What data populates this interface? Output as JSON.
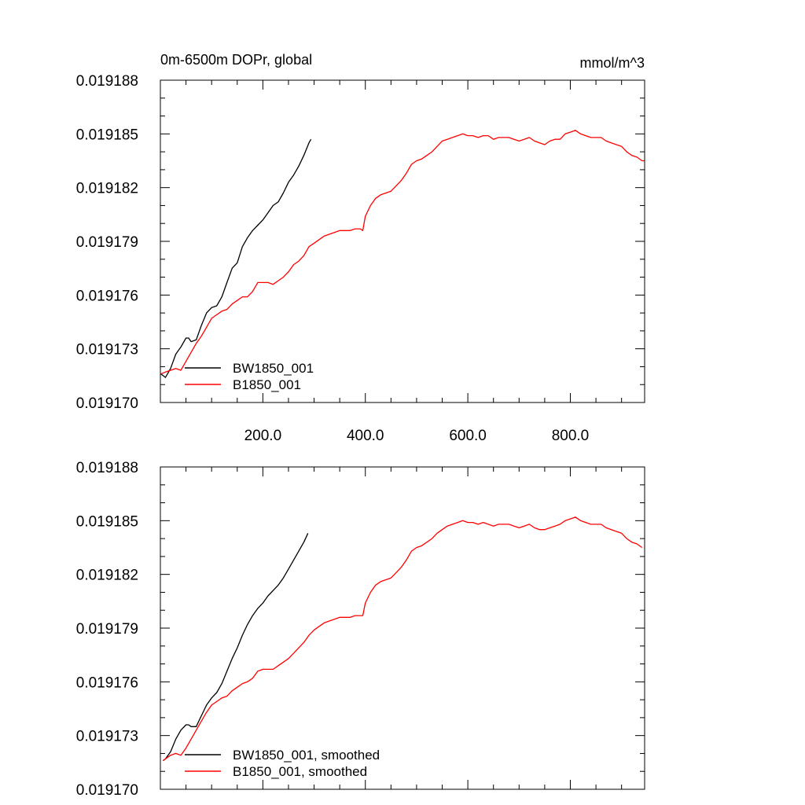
{
  "chart_data": [
    {
      "type": "line",
      "title": "0m-6500m DOPr, global",
      "units": "mmol/m^3",
      "xlim": [
        0,
        945
      ],
      "ylim": [
        0.01917,
        0.019188
      ],
      "x_ticks": [
        200,
        400,
        600,
        800
      ],
      "x_tick_labels": [
        "200.0",
        "400.0",
        "600.0",
        "800.0"
      ],
      "y_ticks": [
        0.01917,
        0.019173,
        0.019176,
        0.019179,
        0.019182,
        0.019185,
        0.019188
      ],
      "y_tick_labels": [
        "0.019170",
        "0.019173",
        "0.019176",
        "0.019179",
        "0.019182",
        "0.019185",
        "0.019188"
      ],
      "legend": "bottom-left",
      "grid": false,
      "series": [
        {
          "name": "BW1850_001",
          "color": "#000000",
          "x": [
            1,
            10,
            20,
            30,
            40,
            50,
            55,
            60,
            70,
            80,
            90,
            100,
            110,
            120,
            130,
            140,
            150,
            160,
            170,
            180,
            190,
            200,
            210,
            220,
            230,
            240,
            250,
            260,
            270,
            280,
            290,
            294
          ],
          "y": [
            0.0191716,
            0.0191714,
            0.0191719,
            0.0191727,
            0.0191731,
            0.0191736,
            0.0191736,
            0.0191734,
            0.0191735,
            0.0191743,
            0.019175,
            0.0191753,
            0.0191754,
            0.0191759,
            0.0191767,
            0.0191775,
            0.0191778,
            0.0191787,
            0.0191792,
            0.0191796,
            0.0191799,
            0.0191802,
            0.0191806,
            0.019181,
            0.0191812,
            0.0191817,
            0.0191823,
            0.0191827,
            0.0191832,
            0.0191838,
            0.0191845,
            0.0191847
          ]
        },
        {
          "name": "B1850_001",
          "color": "#ff0000",
          "x": [
            1,
            10,
            20,
            30,
            40,
            50,
            60,
            70,
            80,
            90,
            100,
            110,
            120,
            130,
            140,
            150,
            160,
            170,
            180,
            190,
            200,
            210,
            220,
            230,
            240,
            250,
            260,
            270,
            280,
            290,
            300,
            310,
            320,
            330,
            340,
            350,
            360,
            370,
            380,
            390,
            395,
            400,
            410,
            420,
            430,
            440,
            450,
            460,
            470,
            480,
            490,
            500,
            510,
            520,
            530,
            540,
            550,
            560,
            570,
            580,
            590,
            600,
            610,
            620,
            630,
            640,
            650,
            660,
            670,
            680,
            690,
            700,
            710,
            720,
            730,
            740,
            750,
            760,
            770,
            780,
            790,
            800,
            810,
            820,
            830,
            840,
            850,
            860,
            870,
            880,
            890,
            900,
            910,
            920,
            930,
            940,
            945
          ],
          "y": [
            0.0191716,
            0.0191717,
            0.0191718,
            0.0191719,
            0.0191718,
            0.0191723,
            0.0191728,
            0.0191733,
            0.0191737,
            0.0191742,
            0.0191747,
            0.0191749,
            0.0191751,
            0.0191752,
            0.0191755,
            0.0191757,
            0.0191759,
            0.0191759,
            0.0191762,
            0.0191767,
            0.0191767,
            0.0191767,
            0.0191766,
            0.0191768,
            0.019177,
            0.0191773,
            0.0191777,
            0.0191779,
            0.0191782,
            0.0191787,
            0.0191789,
            0.0191791,
            0.0191793,
            0.0191794,
            0.0191795,
            0.0191796,
            0.0191796,
            0.0191796,
            0.0191797,
            0.0191797,
            0.0191796,
            0.0191804,
            0.019181,
            0.0191814,
            0.0191816,
            0.0191817,
            0.0191818,
            0.0191821,
            0.0191824,
            0.0191828,
            0.0191833,
            0.0191835,
            0.0191836,
            0.0191838,
            0.019184,
            0.0191843,
            0.0191846,
            0.0191847,
            0.0191848,
            0.0191849,
            0.019185,
            0.0191849,
            0.0191849,
            0.0191848,
            0.0191849,
            0.0191849,
            0.0191847,
            0.0191848,
            0.0191848,
            0.0191848,
            0.0191847,
            0.0191846,
            0.0191847,
            0.0191848,
            0.0191846,
            0.0191845,
            0.0191844,
            0.0191846,
            0.0191847,
            0.0191847,
            0.019185,
            0.0191851,
            0.0191852,
            0.019185,
            0.0191849,
            0.0191848,
            0.0191848,
            0.0191848,
            0.0191846,
            0.0191845,
            0.0191844,
            0.0191843,
            0.019184,
            0.0191838,
            0.0191837,
            0.0191835,
            0.0191835
          ]
        }
      ]
    },
    {
      "type": "line",
      "title": "",
      "units": "",
      "xlim": [
        0,
        945
      ],
      "ylim": [
        0.01917,
        0.019188
      ],
      "x_ticks": [
        200,
        400,
        600,
        800
      ],
      "x_tick_labels": [],
      "y_ticks": [
        0.01917,
        0.019173,
        0.019176,
        0.019179,
        0.019182,
        0.019185,
        0.019188
      ],
      "y_tick_labels": [
        "0.019170",
        "0.019173",
        "0.019176",
        "0.019179",
        "0.019182",
        "0.019185",
        "0.019188"
      ],
      "legend": "bottom-left",
      "grid": false,
      "series": [
        {
          "name": "BW1850_001, smoothed",
          "color": "#000000",
          "x": [
            5,
            10,
            20,
            30,
            40,
            50,
            55,
            60,
            70,
            80,
            90,
            100,
            110,
            120,
            130,
            140,
            150,
            160,
            170,
            180,
            190,
            200,
            210,
            220,
            230,
            240,
            250,
            260,
            270,
            280,
            288
          ],
          "y": [
            0.0191716,
            0.0191717,
            0.0191721,
            0.0191728,
            0.0191733,
            0.0191736,
            0.0191736,
            0.0191735,
            0.0191735,
            0.0191741,
            0.0191747,
            0.0191751,
            0.0191754,
            0.0191759,
            0.0191766,
            0.0191773,
            0.0191779,
            0.0191786,
            0.0191792,
            0.0191797,
            0.0191801,
            0.0191804,
            0.0191808,
            0.0191811,
            0.0191814,
            0.0191818,
            0.0191823,
            0.0191828,
            0.0191833,
            0.0191838,
            0.0191843
          ]
        },
        {
          "name": "B1850_001, smoothed",
          "color": "#ff0000",
          "x": [
            5,
            10,
            20,
            30,
            40,
            50,
            60,
            70,
            80,
            90,
            100,
            110,
            120,
            130,
            140,
            150,
            160,
            170,
            180,
            190,
            200,
            210,
            220,
            230,
            240,
            250,
            260,
            270,
            280,
            290,
            300,
            310,
            320,
            330,
            340,
            350,
            360,
            370,
            380,
            390,
            395,
            400,
            410,
            420,
            430,
            440,
            450,
            460,
            470,
            480,
            490,
            500,
            510,
            520,
            530,
            540,
            550,
            560,
            570,
            580,
            590,
            600,
            610,
            620,
            630,
            640,
            650,
            660,
            670,
            680,
            690,
            700,
            710,
            720,
            730,
            740,
            750,
            760,
            770,
            780,
            790,
            800,
            810,
            820,
            830,
            840,
            850,
            860,
            870,
            880,
            890,
            900,
            910,
            920,
            930,
            940
          ],
          "y": [
            0.0191716,
            0.0191717,
            0.0191719,
            0.019172,
            0.0191719,
            0.0191723,
            0.0191728,
            0.0191733,
            0.0191738,
            0.0191743,
            0.0191747,
            0.0191749,
            0.0191751,
            0.0191752,
            0.0191755,
            0.0191757,
            0.0191759,
            0.019176,
            0.0191762,
            0.0191766,
            0.0191767,
            0.0191767,
            0.0191767,
            0.0191769,
            0.0191771,
            0.0191773,
            0.0191776,
            0.0191779,
            0.0191782,
            0.0191786,
            0.0191789,
            0.0191791,
            0.0191793,
            0.0191794,
            0.0191795,
            0.0191796,
            0.0191796,
            0.0191796,
            0.0191797,
            0.0191797,
            0.0191797,
            0.0191804,
            0.019181,
            0.0191814,
            0.0191816,
            0.0191817,
            0.0191818,
            0.0191821,
            0.0191824,
            0.0191828,
            0.0191833,
            0.0191835,
            0.0191836,
            0.0191838,
            0.019184,
            0.0191843,
            0.0191845,
            0.0191847,
            0.0191848,
            0.0191849,
            0.019185,
            0.0191849,
            0.0191849,
            0.0191848,
            0.0191849,
            0.0191848,
            0.0191847,
            0.0191848,
            0.0191848,
            0.0191848,
            0.0191847,
            0.0191846,
            0.0191847,
            0.0191848,
            0.0191846,
            0.0191845,
            0.0191845,
            0.0191846,
            0.0191847,
            0.0191848,
            0.019185,
            0.0191851,
            0.0191852,
            0.019185,
            0.0191849,
            0.0191848,
            0.0191848,
            0.0191848,
            0.0191846,
            0.0191845,
            0.0191844,
            0.0191843,
            0.019184,
            0.0191838,
            0.0191837,
            0.0191835
          ]
        }
      ]
    }
  ]
}
